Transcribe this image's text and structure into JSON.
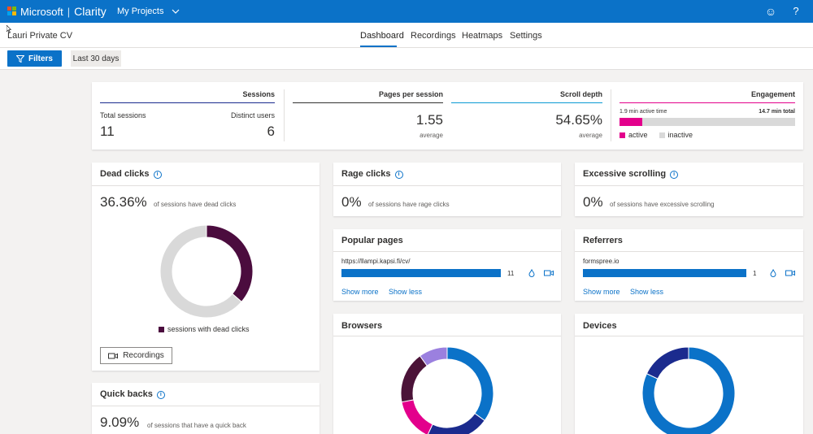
{
  "header": {
    "brand_company": "Microsoft",
    "brand_product": "Clarity",
    "projects_label": "My Projects"
  },
  "project": {
    "name": "Lauri Private CV"
  },
  "tabs": [
    {
      "label": "Dashboard",
      "active": true
    },
    {
      "label": "Recordings"
    },
    {
      "label": "Heatmaps"
    },
    {
      "label": "Settings"
    }
  ],
  "filters": {
    "button_label": "Filters",
    "date_range": "Last 30 days"
  },
  "summary": {
    "sessions_header": "Sessions",
    "total_sessions_label": "Total sessions",
    "total_sessions_value": "11",
    "distinct_users_label": "Distinct users",
    "distinct_users_value": "6",
    "pages_header": "Pages per session",
    "pages_value": "1.55",
    "pages_sub": "average",
    "scroll_header": "Scroll depth",
    "scroll_value": "54.65%",
    "scroll_sub": "average",
    "engagement_header": "Engagement",
    "active_time": "1.9 min active time",
    "total_time": "14.7 min total",
    "active_fraction": 0.129,
    "legend_active": "active",
    "legend_inactive": "inactive"
  },
  "dead_clicks": {
    "title": "Dead clicks",
    "value": "36.36%",
    "desc": "of sessions have dead clicks",
    "fraction": 0.3636,
    "legend": "sessions with dead clicks",
    "recordings_button": "Recordings"
  },
  "rage_clicks": {
    "title": "Rage clicks",
    "value": "0%",
    "desc": "of sessions have rage clicks"
  },
  "excessive_scrolling": {
    "title": "Excessive scrolling",
    "value": "0%",
    "desc": "of sessions have excessive scrolling"
  },
  "popular_pages": {
    "title": "Popular pages",
    "items": [
      {
        "label": "https://llampi.kapsi.fi/cv/",
        "count": "11"
      }
    ],
    "show_more": "Show more",
    "show_less": "Show less"
  },
  "referrers": {
    "title": "Referrers",
    "items": [
      {
        "label": "formspree.io",
        "count": "1"
      }
    ],
    "show_more": "Show more",
    "show_less": "Show less"
  },
  "browsers": {
    "title": "Browsers",
    "segments": [
      {
        "value": 0.35,
        "color": "#0b72c8"
      },
      {
        "value": 0.22,
        "color": "#1b2b8e"
      },
      {
        "value": 0.15,
        "color": "#e3008c"
      },
      {
        "value": 0.18,
        "color": "#4b1338"
      },
      {
        "value": 0.1,
        "color": "#9b80df"
      }
    ]
  },
  "devices": {
    "title": "Devices",
    "segments": [
      {
        "value": 0.82,
        "color": "#0b72c8"
      },
      {
        "value": 0.18,
        "color": "#1b2b8e"
      }
    ]
  },
  "quick_backs": {
    "title": "Quick backs",
    "value": "9.09%",
    "desc": "of sessions that have a quick back"
  },
  "colors": {
    "accent": "#0b72c8",
    "dead_clicks": "#4b0c3e",
    "engagement": "#e3008c",
    "neutral": "#d9d9d9"
  }
}
